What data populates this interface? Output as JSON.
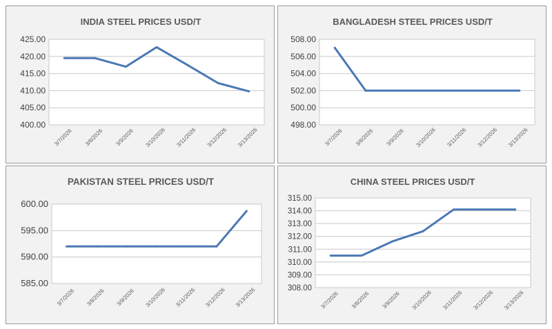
{
  "colors": {
    "line": "#4a78b4",
    "grid": "#c8c8c8",
    "plot_bg": "#ffffff",
    "panel_bg": "#f2f2f2"
  },
  "chart_data": [
    {
      "type": "line",
      "title": "INDIA STEEL PRICES USD/T",
      "categories": [
        "3/7/2026",
        "3/8/2026",
        "3/9/2026",
        "3/10/2026",
        "3/11/2026",
        "3/12/2026",
        "3/13/2026"
      ],
      "series": [
        {
          "values": [
            419.5,
            419.5,
            417.0,
            422.7,
            417.5,
            412.2,
            409.8
          ]
        }
      ],
      "ylim": [
        400,
        425
      ],
      "yticks": [
        "400.00",
        "405.00",
        "410.00",
        "415.00",
        "420.00",
        "425.00"
      ],
      "grid": true
    },
    {
      "type": "line",
      "title": "BANGLADESH STEEL PRICES USD/T",
      "categories": [
        "3/7/2026",
        "3/8/2026",
        "3/9/2026",
        "3/10/2026",
        "3/11/2026",
        "3/12/2026",
        "3/13/2026"
      ],
      "series": [
        {
          "values": [
            507.0,
            502.0,
            502.0,
            502.0,
            502.0,
            502.0,
            502.0
          ]
        }
      ],
      "ylim": [
        498,
        508
      ],
      "yticks": [
        "498.00",
        "500.00",
        "502.00",
        "504.00",
        "506.00",
        "508.00"
      ],
      "grid": true
    },
    {
      "type": "line",
      "title": "PAKISTAN STEEL PRICES USD/T",
      "categories": [
        "3/7/2026",
        "3/8/2026",
        "3/9/2026",
        "3/10/2026",
        "3/11/2026",
        "3/12/2026",
        "3/13/2026"
      ],
      "series": [
        {
          "values": [
            592.0,
            592.0,
            592.0,
            592.0,
            592.0,
            592.0,
            598.7
          ]
        }
      ],
      "ylim": [
        585,
        600
      ],
      "yticks": [
        "585.00",
        "590.00",
        "595.00",
        "600.00"
      ],
      "grid": true
    },
    {
      "type": "line",
      "title": "CHINA STEEL PRICES USD/T",
      "categories": [
        "3/7/2026",
        "3/8/2026",
        "3/9/2026",
        "3/10/2026",
        "3/11/2026",
        "3/12/2026",
        "3/13/2026"
      ],
      "series": [
        {
          "values": [
            310.5,
            310.5,
            311.6,
            312.4,
            314.1,
            314.1,
            314.1
          ]
        }
      ],
      "ylim": [
        308,
        315
      ],
      "yticks": [
        "308.00",
        "309.00",
        "310.00",
        "311.00",
        "312.00",
        "313.00",
        "314.00",
        "315.00"
      ],
      "grid": true
    }
  ]
}
